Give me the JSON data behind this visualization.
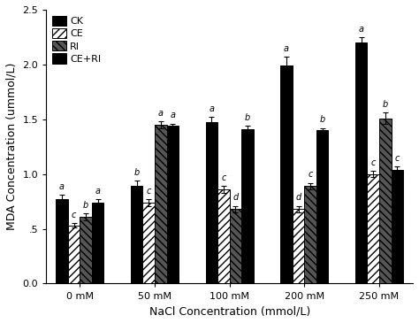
{
  "groups": [
    "0 mM",
    "50 mM",
    "100 mM",
    "200 mM",
    "250 mM"
  ],
  "series_labels": [
    "CK",
    "CE",
    "RI",
    "CE+RI"
  ],
  "values": {
    "CK": [
      0.77,
      0.89,
      1.47,
      1.99,
      2.2
    ],
    "CE": [
      0.53,
      0.74,
      0.86,
      0.68,
      1.0
    ],
    "RI": [
      0.61,
      1.45,
      0.68,
      0.89,
      1.51
    ],
    "CE+RI": [
      0.74,
      1.44,
      1.41,
      1.4,
      1.04
    ]
  },
  "errors": {
    "CK": [
      0.04,
      0.05,
      0.05,
      0.08,
      0.05
    ],
    "CE": [
      0.02,
      0.03,
      0.03,
      0.03,
      0.03
    ],
    "RI": [
      0.03,
      0.03,
      0.03,
      0.03,
      0.05
    ],
    "CE+RI": [
      0.03,
      0.02,
      0.03,
      0.02,
      0.03
    ]
  },
  "significance": {
    "CK": [
      "a",
      "b",
      "a",
      "a",
      "a"
    ],
    "CE": [
      "c",
      "c",
      "c",
      "d",
      "c"
    ],
    "RI": [
      "b",
      "a",
      "d",
      "c",
      "b"
    ],
    "CE+RI": [
      "a",
      "a",
      "b",
      "b",
      "c"
    ]
  },
  "bar_colors": [
    "#000000",
    "#ffffff",
    "#555555",
    "#000000"
  ],
  "hatch_patterns": [
    "",
    "////",
    "\\\\\\\\",
    "...."
  ],
  "bar_edge_colors": [
    "#000000",
    "#000000",
    "#000000",
    "#000000"
  ],
  "ylabel": "MDA Concentration (ummol/L)",
  "xlabel": "NaCl Concentration (mmol/L)",
  "ylim": [
    0.0,
    2.5
  ],
  "yticks": [
    0.0,
    0.5,
    1.0,
    1.5,
    2.0,
    2.5
  ],
  "ytick_labels": [
    "0.0",
    ".5",
    "1.0",
    "1.5",
    "2.0",
    "2.5"
  ],
  "figsize": [
    4.74,
    3.65
  ],
  "dpi": 100,
  "bar_width": 0.16,
  "fontsize_labels": 9,
  "fontsize_ticks": 8,
  "fontsize_legend": 8,
  "fontsize_significance": 7,
  "background_color": "#ffffff"
}
